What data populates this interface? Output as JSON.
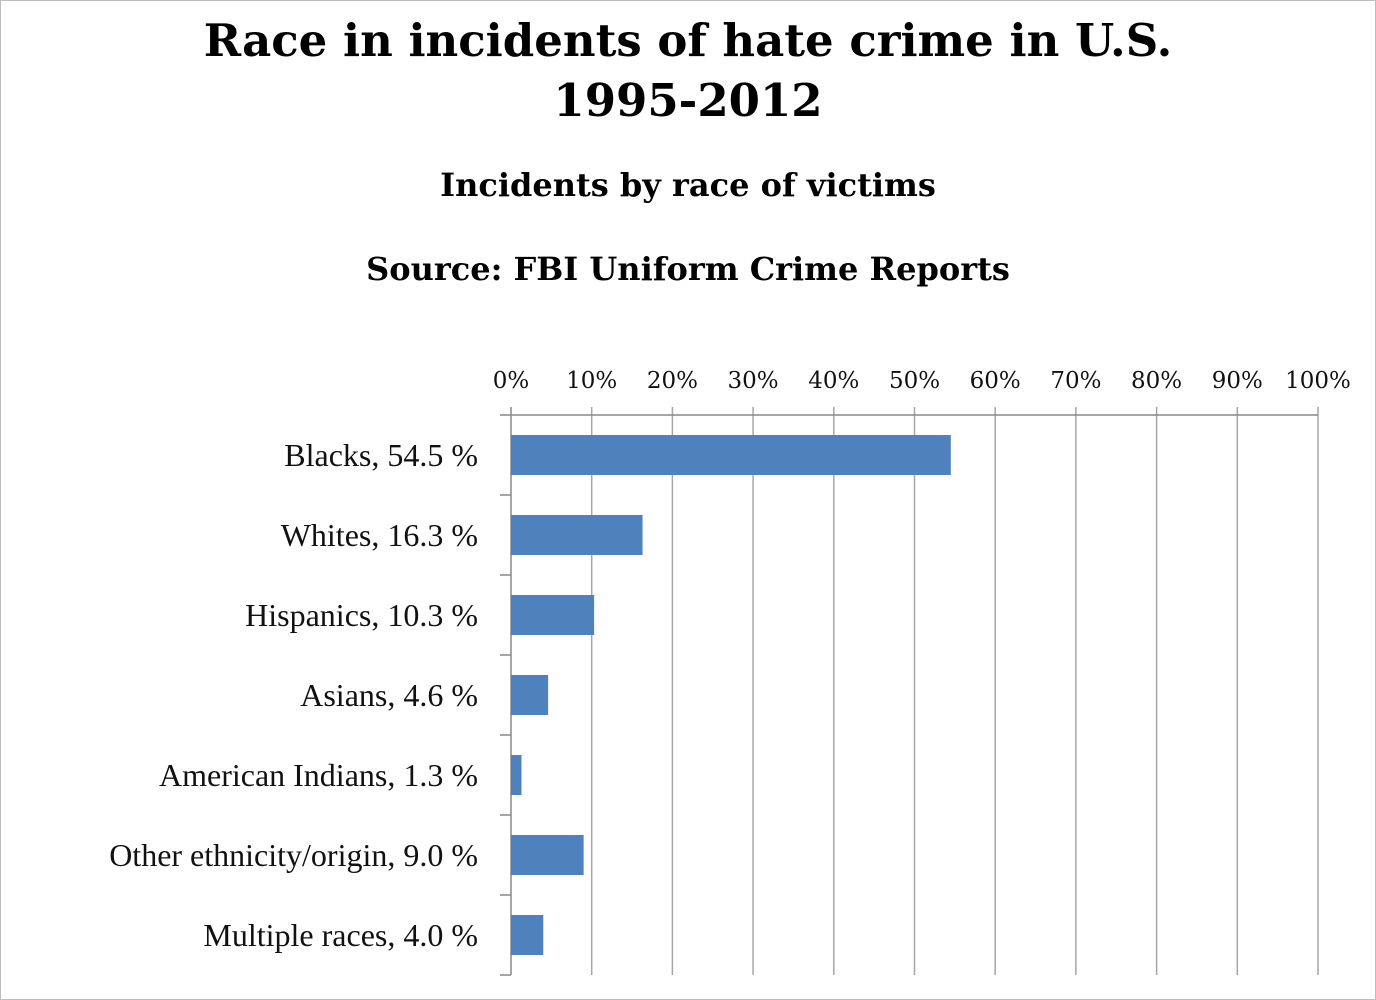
{
  "chart_data": {
    "type": "bar",
    "orientation": "horizontal",
    "title": "Race in incidents of hate crime in U.S. 1995-2012",
    "title_lines": [
      "Race in incidents of hate crime in U.S.",
      "1995-2012"
    ],
    "subtitle": "Incidents by race of victims",
    "source": "Source: FBI Uniform Crime Reports",
    "categories": [
      "Blacks, 54.5 %",
      "Whites, 16.3 %",
      "Hispanics, 10.3 %",
      "Asians, 4.6 %",
      "American Indians, 1.3 %",
      "Other ethnicity/origin, 9.0 %",
      "Multiple races, 4.0 %"
    ],
    "values": [
      54.5,
      16.3,
      10.3,
      4.6,
      1.3,
      9.0,
      4.0
    ],
    "xlim": [
      0,
      100
    ],
    "xticks": [
      "0%",
      "10%",
      "20%",
      "30%",
      "40%",
      "50%",
      "60%",
      "70%",
      "80%",
      "90%",
      "100%"
    ],
    "x_axis_position": "top",
    "grid": true,
    "legend": "none",
    "bar_color": "#4f81bd"
  }
}
